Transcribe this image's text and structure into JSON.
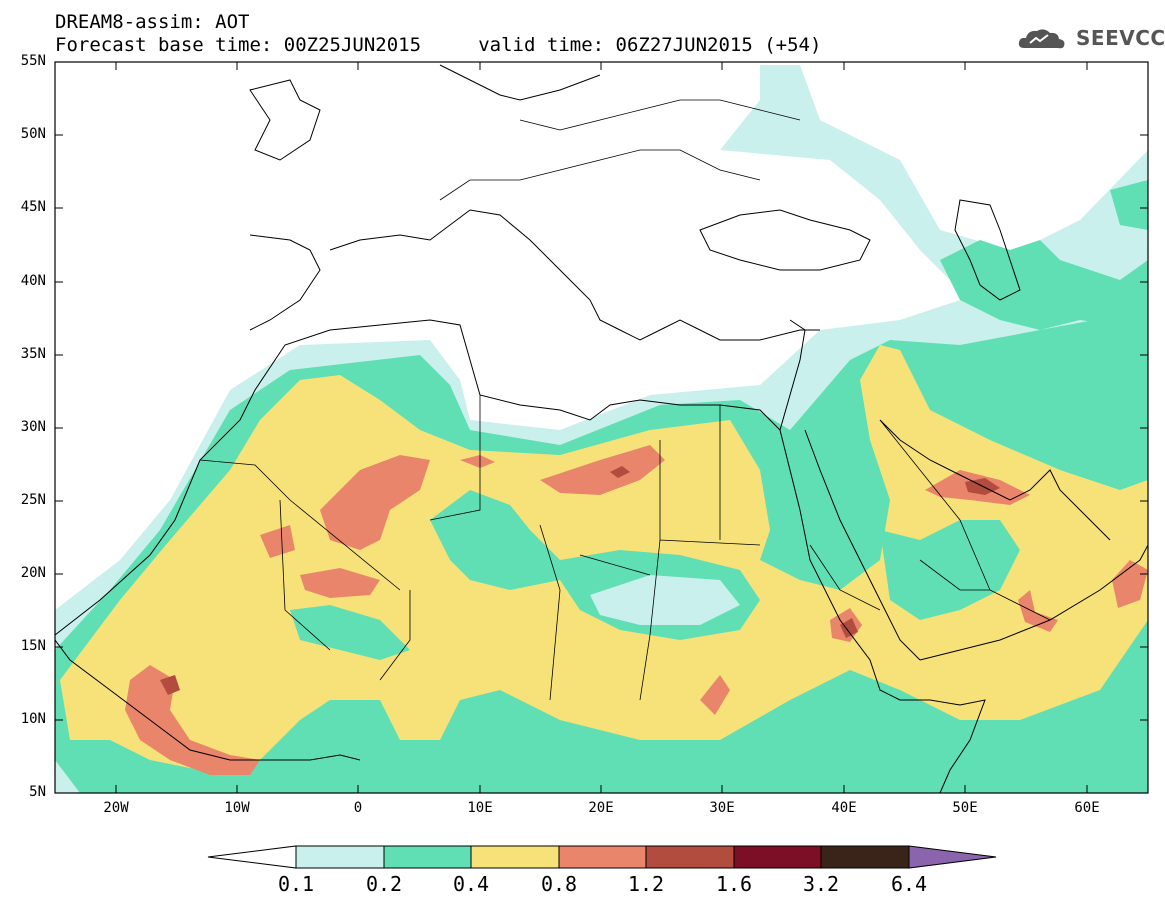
{
  "header": {
    "title_line1": "DREAM8-assim: AOT",
    "title_line2": "Forecast base time: 00Z25JUN2015     valid time: 06Z27JUN2015 (+54)",
    "logo_text": "SEEVCCC",
    "logo_icon": "cloud-icon"
  },
  "map": {
    "lat_labels": [
      "55N",
      "50N",
      "45N",
      "40N",
      "35N",
      "30N",
      "25N",
      "20N",
      "15N",
      "10N",
      "5N"
    ],
    "lon_labels": [
      "20W",
      "10W",
      "0",
      "10E",
      "20E",
      "30E",
      "40E",
      "50E",
      "60E"
    ],
    "extent": {
      "lon": [
        -25,
        65
      ],
      "lat": [
        5,
        55
      ]
    }
  },
  "colorbar": {
    "levels": [
      "0.1",
      "0.2",
      "0.4",
      "0.8",
      "1.2",
      "1.6",
      "3.2",
      "6.4"
    ],
    "colors": [
      "#ffffff",
      "#c9f0ec",
      "#5fdfb3",
      "#f7e27a",
      "#e8856a",
      "#b14c3e",
      "#7c0f26",
      "#3a2318",
      "#8a64ad"
    ]
  }
}
